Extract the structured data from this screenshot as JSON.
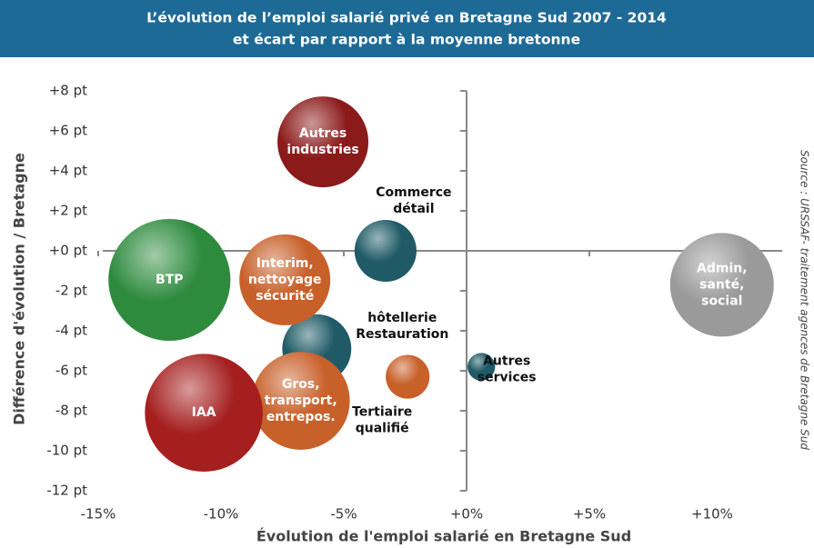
{
  "chart_data": {
    "type": "bubble",
    "title": [
      "L’évolution de l’emploi salarié privé en Bretagne Sud 2007 - 2014",
      "et écart par rapport à la moyenne bretonne"
    ],
    "x_label": "Évolution de l'emploi salarié en Bretagne Sud",
    "y_label": "Différence d'évolution / Bretagne",
    "source": "Source : URSSAF- traitement agences de Bretagne Sud",
    "labels": [
      [
        "Autres",
        "industries"
      ],
      [
        "Commerce",
        "détail"
      ],
      [
        "Admin,",
        "santé,",
        "social"
      ],
      [
        "hôtellerie",
        "Restauration"
      ],
      [
        "BTP"
      ],
      [
        "Interim,",
        "nettoyage",
        "sécurité"
      ],
      [
        "Gros,",
        "transport,",
        "entrepos."
      ],
      [
        "IAA"
      ],
      [
        "Tertiaire",
        "qualifié"
      ],
      [
        "Autres",
        "services"
      ]
    ],
    "x": [
      -5.85,
      -3.3,
      10.4,
      -6.1,
      -12.1,
      -7.4,
      -6.75,
      -10.7,
      -2.4,
      0.6
    ],
    "y": [
      5.45,
      0,
      -1.7,
      -4.9,
      -1.45,
      -1.45,
      -7.5,
      -8.1,
      -6.3,
      -5.8
    ],
    "sizes": [
      25,
      11.6,
      32.5,
      14.4,
      45,
      25,
      29,
      42,
      5.8,
      2.3
    ],
    "colors": [
      "#8b1a1a",
      "#1f5a66",
      "#9a9a9a",
      "#1f5a66",
      "#2e8b3e",
      "#c8602a",
      "#c8602a",
      "#a51f1f",
      "#c8602a",
      "#1f5a66"
    ],
    "xlim": [
      -15,
      13
    ],
    "ylim": [
      -12,
      8
    ],
    "xticks": [
      {
        "value": -15,
        "label": "-15%"
      },
      {
        "value": -10,
        "label": "-10%"
      },
      {
        "value": -5,
        "label": "-5%"
      },
      {
        "value": 0,
        "label": "+0%"
      },
      {
        "value": 5,
        "label": "+5%"
      },
      {
        "value": 10,
        "label": "+10%"
      }
    ],
    "yticks": [
      {
        "value": 8,
        "label": "+8 pt"
      },
      {
        "value": 6,
        "label": "+6 pt"
      },
      {
        "value": 4,
        "label": "+4 pt"
      },
      {
        "value": 2,
        "label": "+2 pt"
      },
      {
        "value": 0,
        "label": "+0 pt"
      },
      {
        "value": -2,
        "label": "-2 pt"
      },
      {
        "value": -4,
        "label": "-4 pt"
      },
      {
        "value": -6,
        "label": "-6 pt"
      },
      {
        "value": -8,
        "label": "-8 pt"
      },
      {
        "value": -10,
        "label": "-10 pt"
      },
      {
        "value": -12,
        "label": "-12 pt"
      }
    ]
  }
}
